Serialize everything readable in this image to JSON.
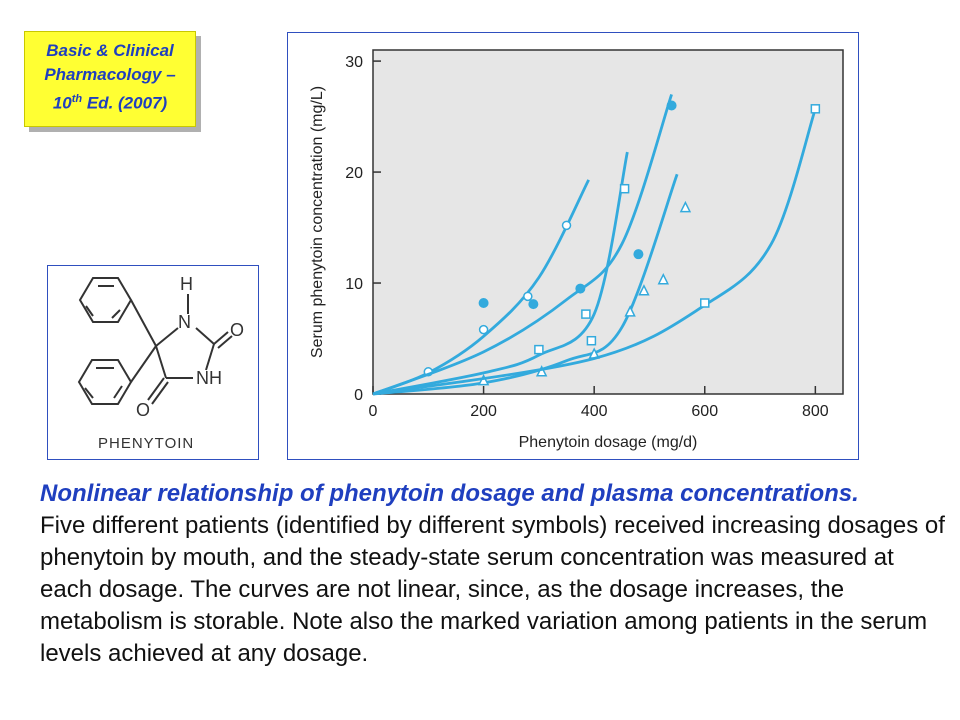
{
  "source": {
    "line1": "Basic & Clinical",
    "line2": "Pharmacology –",
    "line3_num": "10",
    "line3_sup": "th",
    "line3_rest": " Ed. (2007)"
  },
  "molecule": {
    "label": "PHENYTOIN",
    "atoms": {
      "h": "H",
      "n1": "N",
      "o1": "O",
      "nh": "NH",
      "o2": "O"
    }
  },
  "caption": {
    "title": "Nonlinear relationship of phenytoin dosage and plasma concentrations.",
    "body": "Five different patients (identified by different symbols) received increasing dosages of phenytoin by mouth, and the steady-state serum concentration was measured at each dosage. The curves are not linear, since, as the dosage increases, the metabolism is storable. Note also the marked variation among patients in the serum levels achieved at any dosage."
  },
  "colors": {
    "curve": "#33aadd",
    "plot_bg": "#e6e6e6",
    "axis": "#333333",
    "caption_title": "#1f3fbf",
    "source_text": "#1f3fbf",
    "source_bg": "#ffff33"
  },
  "chart_data": {
    "type": "scatter",
    "xlabel": "Phenytoin dosage (mg/d)",
    "ylabel": "Serum phenytoin concentration (mg/L)",
    "xlim": [
      0,
      850
    ],
    "ylim": [
      0,
      31
    ],
    "xticks": [
      0,
      200,
      400,
      600,
      800
    ],
    "yticks": [
      0,
      10,
      20,
      30
    ],
    "grid": false,
    "series": [
      {
        "marker": "open-circle",
        "points": [
          [
            100,
            2
          ],
          [
            200,
            5.8
          ],
          [
            280,
            8.8
          ],
          [
            350,
            15.2
          ]
        ],
        "curve": [
          [
            0,
            0
          ],
          [
            100,
            1.9
          ],
          [
            200,
            5.2
          ],
          [
            300,
            10.5
          ],
          [
            390,
            19.3
          ]
        ]
      },
      {
        "marker": "filled-circle",
        "points": [
          [
            200,
            8.2
          ],
          [
            290,
            8.1
          ],
          [
            375,
            9.5
          ],
          [
            480,
            12.6
          ],
          [
            540,
            26
          ]
        ],
        "curve": [
          [
            0,
            0
          ],
          [
            200,
            3.8
          ],
          [
            350,
            8.5
          ],
          [
            450,
            13.5
          ],
          [
            540,
            27
          ]
        ]
      },
      {
        "marker": "open-square",
        "points": [
          [
            300,
            4
          ],
          [
            385,
            7.2
          ],
          [
            395,
            4.8
          ],
          [
            455,
            18.5
          ]
        ],
        "curve": [
          [
            0,
            0
          ],
          [
            200,
            1.9
          ],
          [
            300,
            3.5
          ],
          [
            400,
            7.2
          ],
          [
            460,
            21.8
          ]
        ]
      },
      {
        "marker": "open-triangle",
        "points": [
          [
            200,
            1.2
          ],
          [
            305,
            2
          ],
          [
            400,
            3.6
          ],
          [
            465,
            7.4
          ],
          [
            490,
            9.3
          ],
          [
            525,
            10.3
          ],
          [
            565,
            16.8
          ]
        ],
        "curve": [
          [
            0,
            0
          ],
          [
            200,
            1
          ],
          [
            350,
            3
          ],
          [
            450,
            6
          ],
          [
            550,
            19.8
          ]
        ]
      },
      {
        "marker": "open-square",
        "points": [
          [
            600,
            8.2
          ],
          [
            800,
            25.7
          ]
        ],
        "curve": [
          [
            0,
            0
          ],
          [
            400,
            3.2
          ],
          [
            600,
            8
          ],
          [
            720,
            13.5
          ],
          [
            800,
            25.7
          ]
        ]
      }
    ]
  }
}
